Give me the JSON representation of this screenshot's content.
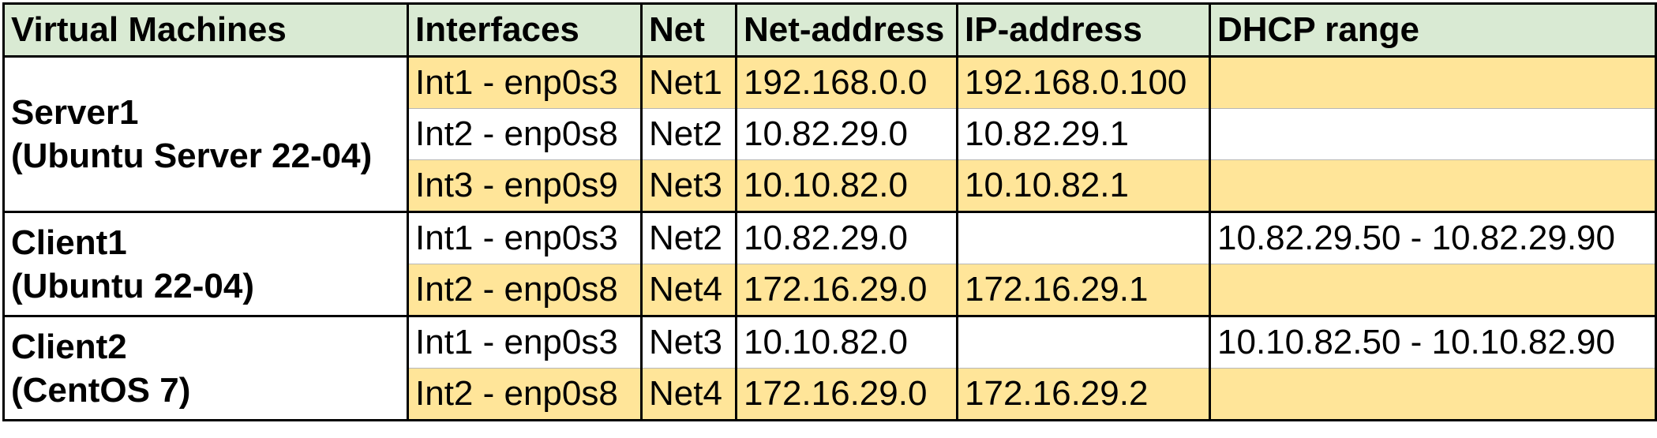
{
  "headers": [
    "Virtual Machines",
    "Interfaces",
    "Net",
    "Net-address",
    "IP-address",
    "DHCP range"
  ],
  "colors": {
    "header_bg": "#d9ead3",
    "highlight_row_bg": "#ffe599",
    "plain_row_bg": "#ffffff",
    "border": "#000000"
  },
  "machines": [
    {
      "name": "Server1",
      "os": "(Ubuntu Server 22-04)",
      "interfaces": [
        {
          "interface": "Int1 - enp0s3",
          "net": "Net1",
          "net_address": "192.168.0.0",
          "ip_address": "192.168.0.100",
          "dhcp_range": ""
        },
        {
          "interface": "Int2 - enp0s8",
          "net": "Net2",
          "net_address": "10.82.29.0",
          "ip_address": "10.82.29.1",
          "dhcp_range": ""
        },
        {
          "interface": "Int3 - enp0s9",
          "net": "Net3",
          "net_address": "10.10.82.0",
          "ip_address": "10.10.82.1",
          "dhcp_range": ""
        }
      ]
    },
    {
      "name": "Client1",
      "os": "(Ubuntu 22-04)",
      "interfaces": [
        {
          "interface": "Int1 - enp0s3",
          "net": "Net2",
          "net_address": "10.82.29.0",
          "ip_address": "",
          "dhcp_range": "10.82.29.50 - 10.82.29.90"
        },
        {
          "interface": "Int2 - enp0s8",
          "net": "Net4",
          "net_address": "172.16.29.0",
          "ip_address": "172.16.29.1",
          "dhcp_range": ""
        }
      ]
    },
    {
      "name": "Client2",
      "os": "(CentOS 7)",
      "interfaces": [
        {
          "interface": "Int1 - enp0s3",
          "net": "Net3",
          "net_address": "10.10.82.0",
          "ip_address": "",
          "dhcp_range": "10.10.82.50 - 10.10.82.90"
        },
        {
          "interface": "Int2 - enp0s8",
          "net": "Net4",
          "net_address": "172.16.29.0",
          "ip_address": "172.16.29.2",
          "dhcp_range": ""
        }
      ]
    }
  ],
  "highlighted_rows": [
    0,
    2,
    4,
    6
  ]
}
